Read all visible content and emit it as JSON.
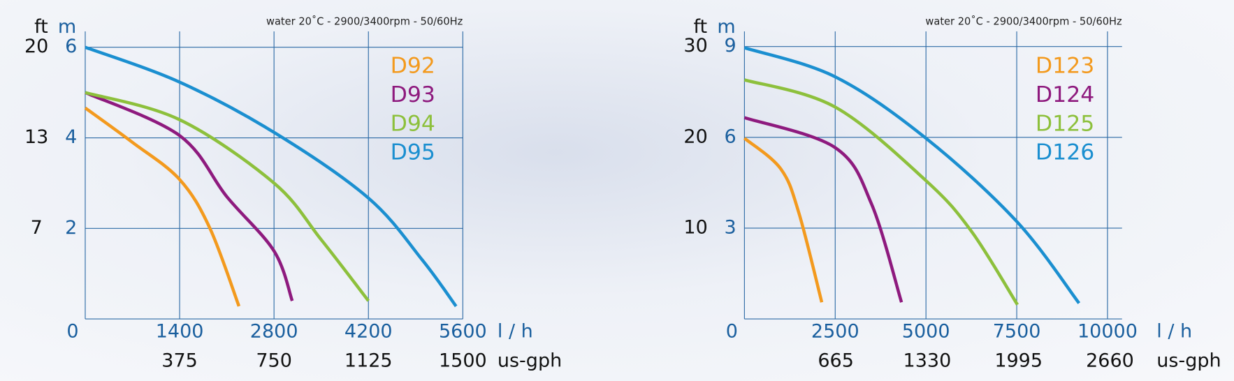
{
  "chart_data": [
    {
      "type": "line",
      "annotation": "water 20˚C - 2900/3400rpm - 50/60Hz",
      "y_label": "m",
      "y2_label": "ft",
      "x_label": "l / h",
      "x2_label": "us-gph",
      "xlim": [
        0,
        5600
      ],
      "xticks": [
        0,
        1400,
        2800,
        4200,
        5600
      ],
      "x2lim": [
        0,
        1500
      ],
      "x2ticks": [
        375,
        750,
        1125,
        1500
      ],
      "ylim": [
        0,
        6.35
      ],
      "yticks": [
        2,
        4,
        6
      ],
      "y2lim": [
        0,
        20.83
      ],
      "y2ticks": [
        {
          "value": 6.56,
          "label": "7"
        },
        {
          "value": 13.12,
          "label": "13"
        },
        {
          "value": 19.69,
          "label": "20"
        }
      ],
      "grid": true,
      "legend": "upper right",
      "series": [
        {
          "name": "D92",
          "color": "#f39a1e",
          "x": [
            0,
            700,
            1400,
            1850,
            2280
          ],
          "values": [
            4.66,
            3.9,
            3.08,
            2.0,
            0.28
          ]
        },
        {
          "name": "D93",
          "color": "#8e1a7e",
          "x": [
            0,
            1400,
            2100,
            2800,
            3070
          ],
          "values": [
            5.0,
            4.05,
            2.7,
            1.5,
            0.4
          ]
        },
        {
          "name": "D94",
          "color": "#8dc03c",
          "x": [
            0,
            1400,
            2800,
            3500,
            4200
          ],
          "values": [
            5.0,
            4.4,
            3.0,
            1.75,
            0.4
          ]
        },
        {
          "name": "D95",
          "color": "#1b8fd0",
          "x": [
            0,
            1400,
            2800,
            4200,
            5000,
            5500
          ],
          "values": [
            6.0,
            5.23,
            4.12,
            2.67,
            1.3,
            0.28
          ]
        }
      ]
    },
    {
      "type": "line",
      "annotation": "water 20˚C - 2900/3400rpm - 50/60Hz",
      "y_label": "m",
      "y2_label": "ft",
      "x_label": "l / h",
      "x2_label": "us-gph",
      "xlim": [
        0,
        10400
      ],
      "xticks": [
        0,
        2500,
        5000,
        7500,
        10000
      ],
      "x2lim": [
        0,
        2748
      ],
      "x2ticks": [
        665,
        1330,
        1995,
        2660
      ],
      "ylim": [
        0,
        9.5
      ],
      "yticks": [
        3,
        6,
        9
      ],
      "y2lim": [
        0,
        31.17
      ],
      "y2ticks": [
        {
          "value": 9.84,
          "label": "10"
        },
        {
          "value": 19.69,
          "label": "20"
        },
        {
          "value": 29.53,
          "label": "30"
        }
      ],
      "grid": true,
      "legend": "upper right",
      "series": [
        {
          "name": "D123",
          "color": "#f39a1e",
          "x": [
            0,
            1000,
            1500,
            2130
          ],
          "values": [
            5.97,
            4.96,
            3.5,
            0.55
          ]
        },
        {
          "name": "D124",
          "color": "#8e1a7e",
          "x": [
            0,
            2500,
            3500,
            4326
          ],
          "values": [
            6.65,
            5.66,
            3.8,
            0.55
          ]
        },
        {
          "name": "D125",
          "color": "#8dc03c",
          "x": [
            0,
            2500,
            5000,
            6250,
            7520
          ],
          "values": [
            7.9,
            7.0,
            4.57,
            2.9,
            0.47
          ]
        },
        {
          "name": "D126",
          "color": "#1b8fd0",
          "x": [
            0,
            2500,
            5000,
            7500,
            9217
          ],
          "values": [
            8.96,
            8.0,
            5.97,
            3.22,
            0.52
          ]
        }
      ]
    }
  ]
}
